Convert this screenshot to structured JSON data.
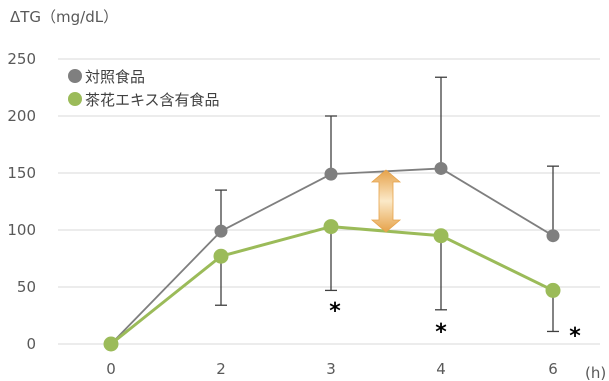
{
  "chart_data": {
    "type": "line",
    "title": "",
    "ylabel": "ΔTG（mg/dL）",
    "xlabel": "",
    "x_unit": "(h)",
    "x": [
      0,
      2,
      3,
      4,
      6
    ],
    "x_ticks": [
      "0",
      "2",
      "3",
      "4",
      "6"
    ],
    "y_ticks": [
      "0",
      "50",
      "100",
      "150",
      "200",
      "250"
    ],
    "ylim": [
      0,
      250
    ],
    "legend_position": "top-left",
    "series": [
      {
        "name": "対照食品",
        "color": "#7f7f7f",
        "values": [
          0,
          99,
          149,
          154,
          95
        ],
        "error_upper": [
          0,
          135,
          200,
          234,
          156
        ],
        "error_lower": null
      },
      {
        "name": "茶花エキス含有食品",
        "color": "#9bbb59",
        "values": [
          0,
          77,
          103,
          95,
          47
        ],
        "error_upper": null,
        "error_lower": [
          0,
          34,
          47,
          30,
          11
        ]
      }
    ],
    "significance_marker": "＊",
    "significance_at_x": [
      3,
      4,
      6
    ],
    "annotation_arrow_between_series_at_x": 3.5
  }
}
